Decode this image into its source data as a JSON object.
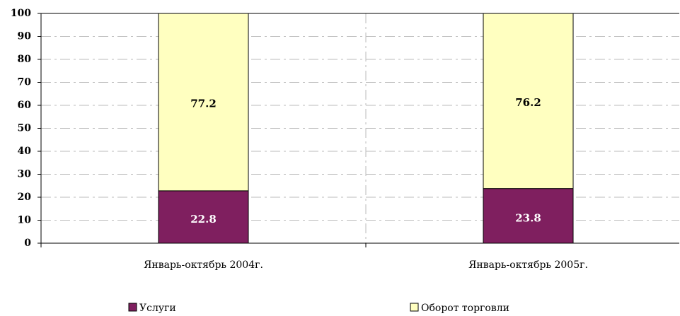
{
  "chart_data": {
    "type": "stacked_bar",
    "categories": [
      "Январь-октябрь 2004г.",
      "Январь-октябрь 2005г."
    ],
    "series": [
      {
        "name": "Услуги",
        "color": "#7f1f5f",
        "values": [
          22.8,
          23.8
        ]
      },
      {
        "name": "Оборот торговли",
        "color": "#ffffc0",
        "values": [
          77.2,
          76.2
        ]
      }
    ],
    "ylim": [
      0,
      100
    ],
    "yticks": [
      0,
      10,
      20,
      30,
      40,
      50,
      60,
      70,
      80,
      90,
      100
    ],
    "grid": true,
    "legend": "bottom"
  }
}
